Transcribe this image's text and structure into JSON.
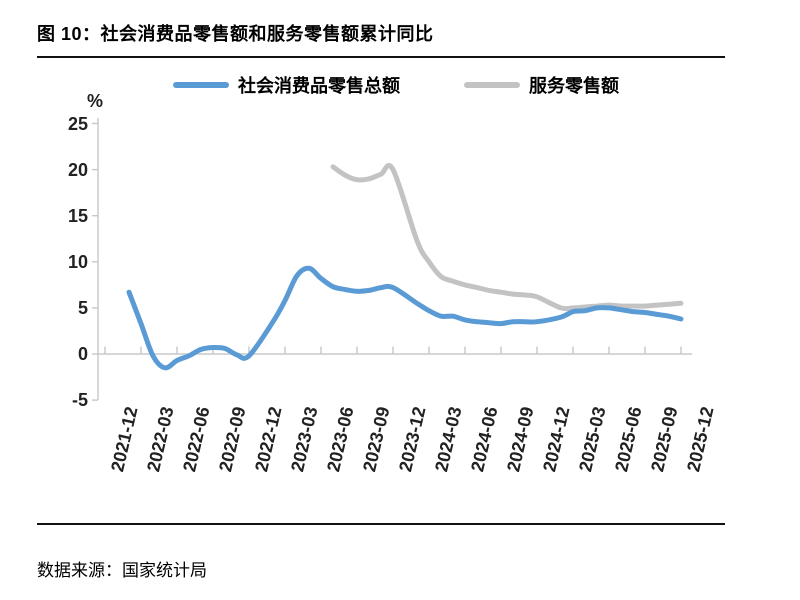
{
  "figure": {
    "title": "图 10：社会消费品零售额和服务零售额累计同比",
    "source": "数据来源：国家统计局"
  },
  "chart_data": {
    "type": "line",
    "title": "社会消费品零售额和服务零售额累计同比",
    "unit_label": "%",
    "ylabel": "%",
    "ylim": [
      -5,
      25
    ],
    "yticks": [
      25,
      20,
      15,
      10,
      5,
      0,
      -5
    ],
    "xtick_labels": [
      "2021-12",
      "2022-03",
      "2022-06",
      "2022-09",
      "2022-12",
      "2023-03",
      "2023-06",
      "2023-09",
      "2023-12",
      "2024-03",
      "2024-06",
      "2024-09",
      "2024-12",
      "2025-03",
      "2025-06",
      "2025-09",
      "2025-12"
    ],
    "grid": false,
    "legend_position": "top-center",
    "series": [
      {
        "name": "社会消费品零售总额",
        "color": "#5B9BD5",
        "points": [
          [
            "2022-02",
            6.7
          ],
          [
            "2022-03",
            3.3
          ],
          [
            "2022-04",
            -0.2
          ],
          [
            "2022-05",
            -1.5
          ],
          [
            "2022-06",
            -0.7
          ],
          [
            "2022-07",
            -0.2
          ],
          [
            "2022-08",
            0.5
          ],
          [
            "2022-09",
            0.7
          ],
          [
            "2022-10",
            0.6
          ],
          [
            "2022-11",
            -0.1
          ],
          [
            "2022-12",
            -0.2
          ],
          [
            "2023-02",
            3.5
          ],
          [
            "2023-03",
            5.8
          ],
          [
            "2023-04",
            8.5
          ],
          [
            "2023-05",
            9.3
          ],
          [
            "2023-06",
            8.2
          ],
          [
            "2023-07",
            7.3
          ],
          [
            "2023-08",
            7.0
          ],
          [
            "2023-09",
            6.8
          ],
          [
            "2023-10",
            6.9
          ],
          [
            "2023-11",
            7.2
          ],
          [
            "2023-12",
            7.2
          ],
          [
            "2024-02",
            5.5
          ],
          [
            "2024-03",
            4.7
          ],
          [
            "2024-04",
            4.1
          ],
          [
            "2024-05",
            4.1
          ],
          [
            "2024-06",
            3.7
          ],
          [
            "2024-07",
            3.5
          ],
          [
            "2024-08",
            3.4
          ],
          [
            "2024-09",
            3.3
          ],
          [
            "2024-10",
            3.5
          ],
          [
            "2024-11",
            3.5
          ],
          [
            "2024-12",
            3.5
          ],
          [
            "2025-02",
            4.0
          ],
          [
            "2025-03",
            4.6
          ],
          [
            "2025-04",
            4.7
          ],
          [
            "2025-05",
            5.0
          ],
          [
            "2025-06",
            5.0
          ],
          [
            "2025-07",
            4.8
          ],
          [
            "2025-08",
            4.6
          ],
          [
            "2025-09",
            4.5
          ],
          [
            "2025-10",
            4.3
          ],
          [
            "2025-11",
            4.1
          ],
          [
            "2025-12",
            3.8
          ]
        ]
      },
      {
        "name": "服务零售额",
        "color": "#C3C3C3",
        "points": [
          [
            "2023-07",
            20.3
          ],
          [
            "2023-08",
            19.4
          ],
          [
            "2023-09",
            18.9
          ],
          [
            "2023-10",
            19.0
          ],
          [
            "2023-11",
            19.5
          ],
          [
            "2023-12",
            20.0
          ],
          [
            "2024-02",
            12.3
          ],
          [
            "2024-03",
            10.0
          ],
          [
            "2024-04",
            8.4
          ],
          [
            "2024-05",
            7.9
          ],
          [
            "2024-06",
            7.5
          ],
          [
            "2024-07",
            7.2
          ],
          [
            "2024-08",
            6.9
          ],
          [
            "2024-09",
            6.7
          ],
          [
            "2024-10",
            6.5
          ],
          [
            "2024-11",
            6.4
          ],
          [
            "2024-12",
            6.2
          ],
          [
            "2025-02",
            5.0
          ],
          [
            "2025-03",
            5.0
          ],
          [
            "2025-04",
            5.1
          ],
          [
            "2025-05",
            5.2
          ],
          [
            "2025-06",
            5.3
          ],
          [
            "2025-07",
            5.2
          ],
          [
            "2025-08",
            5.2
          ],
          [
            "2025-09",
            5.2
          ],
          [
            "2025-10",
            5.3
          ],
          [
            "2025-11",
            5.4
          ],
          [
            "2025-12",
            5.5
          ]
        ]
      }
    ]
  },
  "colors": {
    "accent_blue": "#5B9BD5",
    "accent_gray": "#C3C3C3",
    "axis": "#C8C8C8",
    "tick_text": "#222222",
    "rule": "#111111"
  }
}
